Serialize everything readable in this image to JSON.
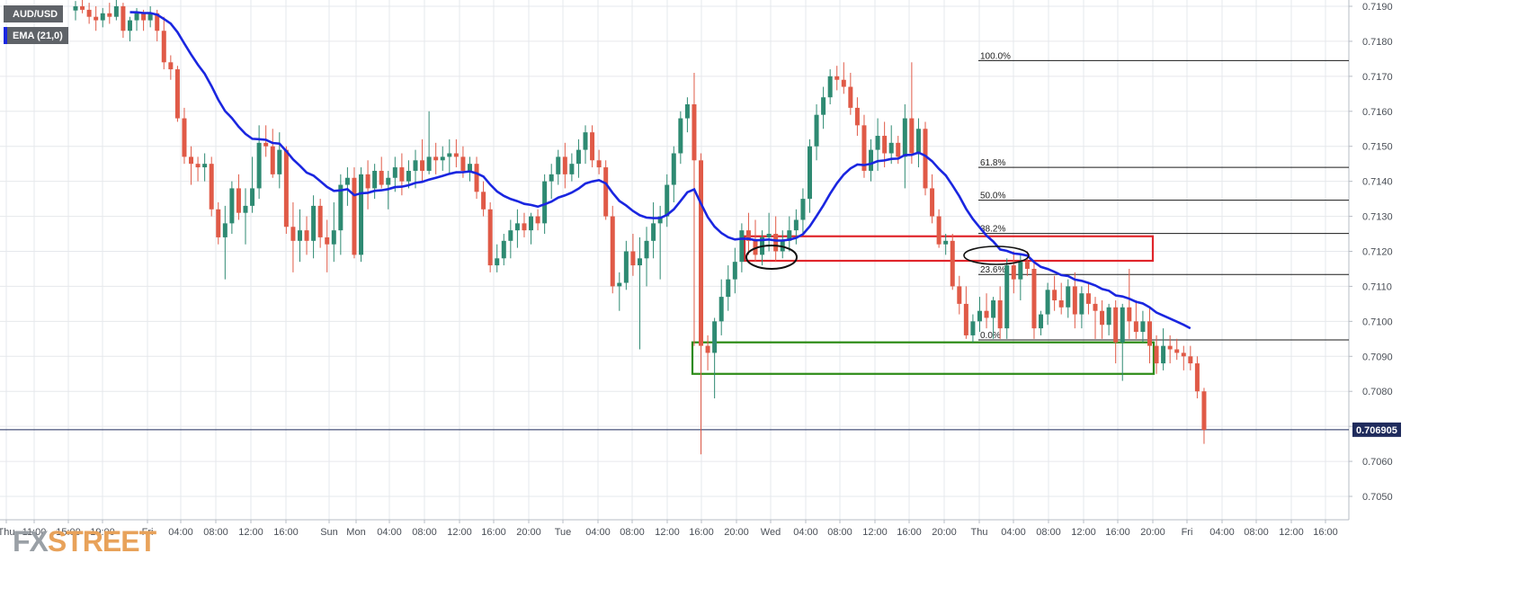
{
  "chart_data": {
    "type": "candlestick",
    "symbol": "AUD/USD",
    "indicator": {
      "label": "EMA (21,0)",
      "period": 21,
      "color": "#1a26e0"
    },
    "colors": {
      "up": "#2e8a72",
      "down": "#e05a47",
      "accent_legend": "#1a26e0",
      "watermark_fx": "#9aa0a6",
      "watermark_street": "#e8a25a",
      "resistance_box": "#e0252b",
      "support_box": "#2b8a14"
    },
    "y_ticks": [
      "0.7050",
      "0.7060",
      "0.7070",
      "0.7080",
      "0.7090",
      "0.7100",
      "0.7110",
      "0.7120",
      "0.7130",
      "0.7140",
      "0.7150",
      "0.7160",
      "0.7170",
      "0.7180",
      "0.7190"
    ],
    "ylim": [
      0.7044,
      0.7192
    ],
    "last_price": "0.706905",
    "x_ticks": [
      "Thu",
      "11:00",
      "15:00",
      "19:00",
      "Fri",
      "04:00",
      "08:00",
      "12:00",
      "16:00",
      "Sun",
      "Mon",
      "04:00",
      "08:00",
      "12:00",
      "16:00",
      "20:00",
      "Tue",
      "04:00",
      "08:00",
      "12:00",
      "16:00",
      "20:00",
      "Wed",
      "04:00",
      "08:00",
      "12:00",
      "16:00",
      "20:00",
      "Thu",
      "04:00",
      "08:00",
      "12:00",
      "16:00",
      "20:00",
      "Fri",
      "04:00",
      "08:00",
      "12:00",
      "16:00"
    ],
    "fib_levels": [
      {
        "label": "100.0%",
        "price": 0.71745
      },
      {
        "label": "61.8%",
        "price": 0.7144
      },
      {
        "label": "50.0%",
        "price": 0.71346
      },
      {
        "label": "38.2%",
        "price": 0.71251
      },
      {
        "label": "23.6%",
        "price": 0.71134
      },
      {
        "label": "0.0%",
        "price": 0.70947
      }
    ],
    "zones": [
      {
        "name": "resistance",
        "top": 0.71243,
        "bottom": 0.71173
      },
      {
        "name": "support",
        "top": 0.7094,
        "bottom": 0.7085
      }
    ],
    "candles": [
      {
        "o": 0.71888,
        "h": 0.71915,
        "l": 0.7186,
        "c": 0.719
      },
      {
        "o": 0.719,
        "h": 0.71925,
        "l": 0.7188,
        "c": 0.7189
      },
      {
        "o": 0.7189,
        "h": 0.7191,
        "l": 0.7185,
        "c": 0.7187
      },
      {
        "o": 0.7187,
        "h": 0.719,
        "l": 0.7183,
        "c": 0.7186
      },
      {
        "o": 0.7186,
        "h": 0.71895,
        "l": 0.7184,
        "c": 0.7188
      },
      {
        "o": 0.7188,
        "h": 0.7191,
        "l": 0.7185,
        "c": 0.7187
      },
      {
        "o": 0.7187,
        "h": 0.7192,
        "l": 0.7186,
        "c": 0.719
      },
      {
        "o": 0.719,
        "h": 0.7191,
        "l": 0.7181,
        "c": 0.7183
      },
      {
        "o": 0.7183,
        "h": 0.7187,
        "l": 0.718,
        "c": 0.7186
      },
      {
        "o": 0.7186,
        "h": 0.71895,
        "l": 0.7183,
        "c": 0.7188
      },
      {
        "o": 0.7188,
        "h": 0.7189,
        "l": 0.7183,
        "c": 0.7186
      },
      {
        "o": 0.7186,
        "h": 0.719,
        "l": 0.7184,
        "c": 0.7188
      },
      {
        "o": 0.7188,
        "h": 0.7189,
        "l": 0.718,
        "c": 0.7183
      },
      {
        "o": 0.7183,
        "h": 0.7187,
        "l": 0.7172,
        "c": 0.7174
      },
      {
        "o": 0.7174,
        "h": 0.7176,
        "l": 0.7169,
        "c": 0.7172
      },
      {
        "o": 0.7172,
        "h": 0.7173,
        "l": 0.7157,
        "c": 0.7158
      },
      {
        "o": 0.7158,
        "h": 0.7161,
        "l": 0.7145,
        "c": 0.7147
      },
      {
        "o": 0.7147,
        "h": 0.715,
        "l": 0.7139,
        "c": 0.7145
      },
      {
        "o": 0.7145,
        "h": 0.7147,
        "l": 0.714,
        "c": 0.7144
      },
      {
        "o": 0.7144,
        "h": 0.7148,
        "l": 0.714,
        "c": 0.7145
      },
      {
        "o": 0.7145,
        "h": 0.7147,
        "l": 0.713,
        "c": 0.7132
      },
      {
        "o": 0.7132,
        "h": 0.7134,
        "l": 0.7122,
        "c": 0.7124
      },
      {
        "o": 0.7124,
        "h": 0.7133,
        "l": 0.7112,
        "c": 0.7128
      },
      {
        "o": 0.7128,
        "h": 0.714,
        "l": 0.7125,
        "c": 0.7138
      },
      {
        "o": 0.7138,
        "h": 0.7142,
        "l": 0.7129,
        "c": 0.7131
      },
      {
        "o": 0.7131,
        "h": 0.7138,
        "l": 0.7122,
        "c": 0.7133
      },
      {
        "o": 0.7133,
        "h": 0.7147,
        "l": 0.7131,
        "c": 0.7138
      },
      {
        "o": 0.7138,
        "h": 0.7156,
        "l": 0.7135,
        "c": 0.7151
      },
      {
        "o": 0.7151,
        "h": 0.7156,
        "l": 0.7147,
        "c": 0.715
      },
      {
        "o": 0.715,
        "h": 0.7155,
        "l": 0.7141,
        "c": 0.7142
      },
      {
        "o": 0.7142,
        "h": 0.7154,
        "l": 0.7138,
        "c": 0.7149
      },
      {
        "o": 0.7149,
        "h": 0.715,
        "l": 0.7125,
        "c": 0.7127
      },
      {
        "o": 0.7127,
        "h": 0.7134,
        "l": 0.7114,
        "c": 0.7123
      },
      {
        "o": 0.7123,
        "h": 0.7132,
        "l": 0.7117,
        "c": 0.7126
      },
      {
        "o": 0.7126,
        "h": 0.713,
        "l": 0.7119,
        "c": 0.7123
      },
      {
        "o": 0.7123,
        "h": 0.7136,
        "l": 0.7118,
        "c": 0.7133
      },
      {
        "o": 0.7133,
        "h": 0.7135,
        "l": 0.7121,
        "c": 0.7124
      },
      {
        "o": 0.7124,
        "h": 0.7129,
        "l": 0.7114,
        "c": 0.7122
      },
      {
        "o": 0.7122,
        "h": 0.7134,
        "l": 0.7117,
        "c": 0.7126
      },
      {
        "o": 0.7126,
        "h": 0.7142,
        "l": 0.7119,
        "c": 0.7139
      },
      {
        "o": 0.7139,
        "h": 0.7144,
        "l": 0.7133,
        "c": 0.7141
      },
      {
        "o": 0.7141,
        "h": 0.7144,
        "l": 0.7118,
        "c": 0.7119
      },
      {
        "o": 0.7119,
        "h": 0.7144,
        "l": 0.7117,
        "c": 0.7142
      },
      {
        "o": 0.7142,
        "h": 0.7146,
        "l": 0.7132,
        "c": 0.7138
      },
      {
        "o": 0.7138,
        "h": 0.7145,
        "l": 0.7135,
        "c": 0.7143
      },
      {
        "o": 0.7143,
        "h": 0.7147,
        "l": 0.7138,
        "c": 0.7139
      },
      {
        "o": 0.7139,
        "h": 0.7143,
        "l": 0.7132,
        "c": 0.7141
      },
      {
        "o": 0.7141,
        "h": 0.7147,
        "l": 0.7137,
        "c": 0.7144
      },
      {
        "o": 0.7144,
        "h": 0.7148,
        "l": 0.7136,
        "c": 0.714
      },
      {
        "o": 0.714,
        "h": 0.7146,
        "l": 0.7138,
        "c": 0.7143
      },
      {
        "o": 0.7143,
        "h": 0.7149,
        "l": 0.7138,
        "c": 0.7146
      },
      {
        "o": 0.7146,
        "h": 0.7152,
        "l": 0.714,
        "c": 0.7143
      },
      {
        "o": 0.7143,
        "h": 0.716,
        "l": 0.7142,
        "c": 0.7147
      },
      {
        "o": 0.7147,
        "h": 0.7151,
        "l": 0.7142,
        "c": 0.7146
      },
      {
        "o": 0.7146,
        "h": 0.715,
        "l": 0.7143,
        "c": 0.7147
      },
      {
        "o": 0.7147,
        "h": 0.7152,
        "l": 0.7142,
        "c": 0.7148
      },
      {
        "o": 0.7148,
        "h": 0.7152,
        "l": 0.7144,
        "c": 0.7147
      },
      {
        "o": 0.7147,
        "h": 0.715,
        "l": 0.7141,
        "c": 0.7143
      },
      {
        "o": 0.7143,
        "h": 0.7147,
        "l": 0.714,
        "c": 0.7145
      },
      {
        "o": 0.7145,
        "h": 0.7147,
        "l": 0.7135,
        "c": 0.7137
      },
      {
        "o": 0.7137,
        "h": 0.714,
        "l": 0.713,
        "c": 0.7132
      },
      {
        "o": 0.7132,
        "h": 0.7134,
        "l": 0.7114,
        "c": 0.7116
      },
      {
        "o": 0.7116,
        "h": 0.7122,
        "l": 0.7114,
        "c": 0.7118
      },
      {
        "o": 0.7118,
        "h": 0.7125,
        "l": 0.7116,
        "c": 0.7123
      },
      {
        "o": 0.7123,
        "h": 0.7129,
        "l": 0.7118,
        "c": 0.7126
      },
      {
        "o": 0.7126,
        "h": 0.7132,
        "l": 0.7121,
        "c": 0.7128
      },
      {
        "o": 0.7128,
        "h": 0.7131,
        "l": 0.7124,
        "c": 0.7126
      },
      {
        "o": 0.7126,
        "h": 0.7131,
        "l": 0.7122,
        "c": 0.713
      },
      {
        "o": 0.713,
        "h": 0.7132,
        "l": 0.7126,
        "c": 0.7128
      },
      {
        "o": 0.7128,
        "h": 0.7142,
        "l": 0.7125,
        "c": 0.714
      },
      {
        "o": 0.714,
        "h": 0.7145,
        "l": 0.7135,
        "c": 0.7142
      },
      {
        "o": 0.7142,
        "h": 0.7149,
        "l": 0.7139,
        "c": 0.7147
      },
      {
        "o": 0.7147,
        "h": 0.7151,
        "l": 0.7138,
        "c": 0.7142
      },
      {
        "o": 0.7142,
        "h": 0.7148,
        "l": 0.714,
        "c": 0.7145
      },
      {
        "o": 0.7145,
        "h": 0.7152,
        "l": 0.7141,
        "c": 0.7149
      },
      {
        "o": 0.7149,
        "h": 0.7156,
        "l": 0.7145,
        "c": 0.7154
      },
      {
        "o": 0.7154,
        "h": 0.7156,
        "l": 0.7144,
        "c": 0.7146
      },
      {
        "o": 0.7146,
        "h": 0.7149,
        "l": 0.7142,
        "c": 0.7144
      },
      {
        "o": 0.7144,
        "h": 0.7146,
        "l": 0.7129,
        "c": 0.713
      },
      {
        "o": 0.713,
        "h": 0.7133,
        "l": 0.7108,
        "c": 0.711
      },
      {
        "o": 0.711,
        "h": 0.7114,
        "l": 0.7103,
        "c": 0.7111
      },
      {
        "o": 0.7111,
        "h": 0.7123,
        "l": 0.7109,
        "c": 0.712
      },
      {
        "o": 0.712,
        "h": 0.7125,
        "l": 0.7113,
        "c": 0.7116
      },
      {
        "o": 0.7116,
        "h": 0.7124,
        "l": 0.7092,
        "c": 0.7118
      },
      {
        "o": 0.7118,
        "h": 0.7127,
        "l": 0.711,
        "c": 0.7123
      },
      {
        "o": 0.7123,
        "h": 0.7134,
        "l": 0.7118,
        "c": 0.7128
      },
      {
        "o": 0.7128,
        "h": 0.7133,
        "l": 0.7112,
        "c": 0.713
      },
      {
        "o": 0.713,
        "h": 0.7142,
        "l": 0.7127,
        "c": 0.7139
      },
      {
        "o": 0.7139,
        "h": 0.715,
        "l": 0.7134,
        "c": 0.7148
      },
      {
        "o": 0.7148,
        "h": 0.716,
        "l": 0.7145,
        "c": 0.7158
      },
      {
        "o": 0.7158,
        "h": 0.7164,
        "l": 0.7154,
        "c": 0.7162
      },
      {
        "o": 0.7162,
        "h": 0.7171,
        "l": 0.7093,
        "c": 0.7146
      },
      {
        "o": 0.7146,
        "h": 0.7148,
        "l": 0.7062,
        "c": 0.7093
      },
      {
        "o": 0.7093,
        "h": 0.7096,
        "l": 0.7086,
        "c": 0.7091
      },
      {
        "o": 0.7091,
        "h": 0.7101,
        "l": 0.7078,
        "c": 0.71
      },
      {
        "o": 0.71,
        "h": 0.7112,
        "l": 0.7096,
        "c": 0.7107
      },
      {
        "o": 0.7107,
        "h": 0.7116,
        "l": 0.7103,
        "c": 0.7112
      },
      {
        "o": 0.7112,
        "h": 0.7121,
        "l": 0.7108,
        "c": 0.7117
      },
      {
        "o": 0.7117,
        "h": 0.7128,
        "l": 0.7114,
        "c": 0.7126
      },
      {
        "o": 0.7126,
        "h": 0.7131,
        "l": 0.7119,
        "c": 0.7123
      },
      {
        "o": 0.7123,
        "h": 0.7129,
        "l": 0.7117,
        "c": 0.7119
      },
      {
        "o": 0.7119,
        "h": 0.7126,
        "l": 0.7116,
        "c": 0.7124
      },
      {
        "o": 0.7124,
        "h": 0.7131,
        "l": 0.712,
        "c": 0.7125
      },
      {
        "o": 0.7125,
        "h": 0.713,
        "l": 0.7117,
        "c": 0.712
      },
      {
        "o": 0.712,
        "h": 0.7126,
        "l": 0.7118,
        "c": 0.7123
      },
      {
        "o": 0.7123,
        "h": 0.713,
        "l": 0.712,
        "c": 0.7126
      },
      {
        "o": 0.7126,
        "h": 0.7132,
        "l": 0.7122,
        "c": 0.7129
      },
      {
        "o": 0.7129,
        "h": 0.7138,
        "l": 0.7125,
        "c": 0.7135
      },
      {
        "o": 0.7135,
        "h": 0.7152,
        "l": 0.7131,
        "c": 0.715
      },
      {
        "o": 0.715,
        "h": 0.7162,
        "l": 0.7146,
        "c": 0.7159
      },
      {
        "o": 0.7159,
        "h": 0.7167,
        "l": 0.7155,
        "c": 0.7164
      },
      {
        "o": 0.7164,
        "h": 0.7172,
        "l": 0.7162,
        "c": 0.717
      },
      {
        "o": 0.717,
        "h": 0.7173,
        "l": 0.7166,
        "c": 0.7169
      },
      {
        "o": 0.7169,
        "h": 0.7174,
        "l": 0.7165,
        "c": 0.7167
      },
      {
        "o": 0.7167,
        "h": 0.7171,
        "l": 0.7159,
        "c": 0.7161
      },
      {
        "o": 0.7161,
        "h": 0.7164,
        "l": 0.7153,
        "c": 0.7156
      },
      {
        "o": 0.7156,
        "h": 0.7159,
        "l": 0.7141,
        "c": 0.7143
      },
      {
        "o": 0.7143,
        "h": 0.7152,
        "l": 0.714,
        "c": 0.7149
      },
      {
        "o": 0.7149,
        "h": 0.7158,
        "l": 0.7143,
        "c": 0.7153
      },
      {
        "o": 0.7153,
        "h": 0.7157,
        "l": 0.7144,
        "c": 0.7148
      },
      {
        "o": 0.7148,
        "h": 0.7156,
        "l": 0.7145,
        "c": 0.7151
      },
      {
        "o": 0.7151,
        "h": 0.7153,
        "l": 0.7145,
        "c": 0.7147
      },
      {
        "o": 0.7147,
        "h": 0.7162,
        "l": 0.7138,
        "c": 0.7158
      },
      {
        "o": 0.7158,
        "h": 0.7174,
        "l": 0.7145,
        "c": 0.7148
      },
      {
        "o": 0.7148,
        "h": 0.7158,
        "l": 0.7144,
        "c": 0.7155
      },
      {
        "o": 0.7155,
        "h": 0.7157,
        "l": 0.7136,
        "c": 0.7138
      },
      {
        "o": 0.7138,
        "h": 0.7142,
        "l": 0.7128,
        "c": 0.713
      },
      {
        "o": 0.713,
        "h": 0.7132,
        "l": 0.7121,
        "c": 0.7122
      },
      {
        "o": 0.7122,
        "h": 0.7125,
        "l": 0.7119,
        "c": 0.7123
      },
      {
        "o": 0.7123,
        "h": 0.7125,
        "l": 0.7109,
        "c": 0.711
      },
      {
        "o": 0.711,
        "h": 0.7113,
        "l": 0.7102,
        "c": 0.7105
      },
      {
        "o": 0.7105,
        "h": 0.711,
        "l": 0.7095,
        "c": 0.7096
      },
      {
        "o": 0.7096,
        "h": 0.7102,
        "l": 0.7094,
        "c": 0.71
      },
      {
        "o": 0.71,
        "h": 0.7107,
        "l": 0.7097,
        "c": 0.7103
      },
      {
        "o": 0.7103,
        "h": 0.7108,
        "l": 0.7098,
        "c": 0.7101
      },
      {
        "o": 0.7101,
        "h": 0.7107,
        "l": 0.7095,
        "c": 0.7106
      },
      {
        "o": 0.7106,
        "h": 0.711,
        "l": 0.7095,
        "c": 0.7098
      },
      {
        "o": 0.7098,
        "h": 0.7118,
        "l": 0.7095,
        "c": 0.7116
      },
      {
        "o": 0.7116,
        "h": 0.712,
        "l": 0.7108,
        "c": 0.7112
      },
      {
        "o": 0.7112,
        "h": 0.7119,
        "l": 0.7106,
        "c": 0.7117
      },
      {
        "o": 0.7117,
        "h": 0.712,
        "l": 0.7113,
        "c": 0.7115
      },
      {
        "o": 0.7115,
        "h": 0.7117,
        "l": 0.7095,
        "c": 0.7098
      },
      {
        "o": 0.7098,
        "h": 0.7103,
        "l": 0.7096,
        "c": 0.7102
      },
      {
        "o": 0.7102,
        "h": 0.7111,
        "l": 0.7099,
        "c": 0.7109
      },
      {
        "o": 0.7109,
        "h": 0.7113,
        "l": 0.7103,
        "c": 0.7106
      },
      {
        "o": 0.7106,
        "h": 0.7111,
        "l": 0.7102,
        "c": 0.7104
      },
      {
        "o": 0.7104,
        "h": 0.7112,
        "l": 0.7101,
        "c": 0.711
      },
      {
        "o": 0.711,
        "h": 0.7114,
        "l": 0.7098,
        "c": 0.7102
      },
      {
        "o": 0.7102,
        "h": 0.711,
        "l": 0.7098,
        "c": 0.7108
      },
      {
        "o": 0.7108,
        "h": 0.7111,
        "l": 0.7102,
        "c": 0.7105
      },
      {
        "o": 0.7105,
        "h": 0.7107,
        "l": 0.7095,
        "c": 0.7103
      },
      {
        "o": 0.7103,
        "h": 0.7106,
        "l": 0.7095,
        "c": 0.7099
      },
      {
        "o": 0.7099,
        "h": 0.7105,
        "l": 0.7096,
        "c": 0.7104
      },
      {
        "o": 0.7104,
        "h": 0.7106,
        "l": 0.7088,
        "c": 0.7094
      },
      {
        "o": 0.7094,
        "h": 0.7105,
        "l": 0.7083,
        "c": 0.7104
      },
      {
        "o": 0.7104,
        "h": 0.7115,
        "l": 0.7095,
        "c": 0.71
      },
      {
        "o": 0.71,
        "h": 0.7106,
        "l": 0.7095,
        "c": 0.7097
      },
      {
        "o": 0.7097,
        "h": 0.7103,
        "l": 0.7094,
        "c": 0.71
      },
      {
        "o": 0.71,
        "h": 0.7104,
        "l": 0.7088,
        "c": 0.7093
      },
      {
        "o": 0.7093,
        "h": 0.7096,
        "l": 0.7085,
        "c": 0.7088
      },
      {
        "o": 0.7088,
        "h": 0.7098,
        "l": 0.7086,
        "c": 0.7093
      },
      {
        "o": 0.7093,
        "h": 0.7096,
        "l": 0.7088,
        "c": 0.7092
      },
      {
        "o": 0.7092,
        "h": 0.7095,
        "l": 0.7089,
        "c": 0.7091
      },
      {
        "o": 0.7091,
        "h": 0.7093,
        "l": 0.7086,
        "c": 0.709
      },
      {
        "o": 0.709,
        "h": 0.7093,
        "l": 0.7086,
        "c": 0.7088
      },
      {
        "o": 0.7088,
        "h": 0.709,
        "l": 0.7078,
        "c": 0.708
      },
      {
        "o": 0.708,
        "h": 0.7081,
        "l": 0.7065,
        "c": 0.7069
      }
    ]
  }
}
